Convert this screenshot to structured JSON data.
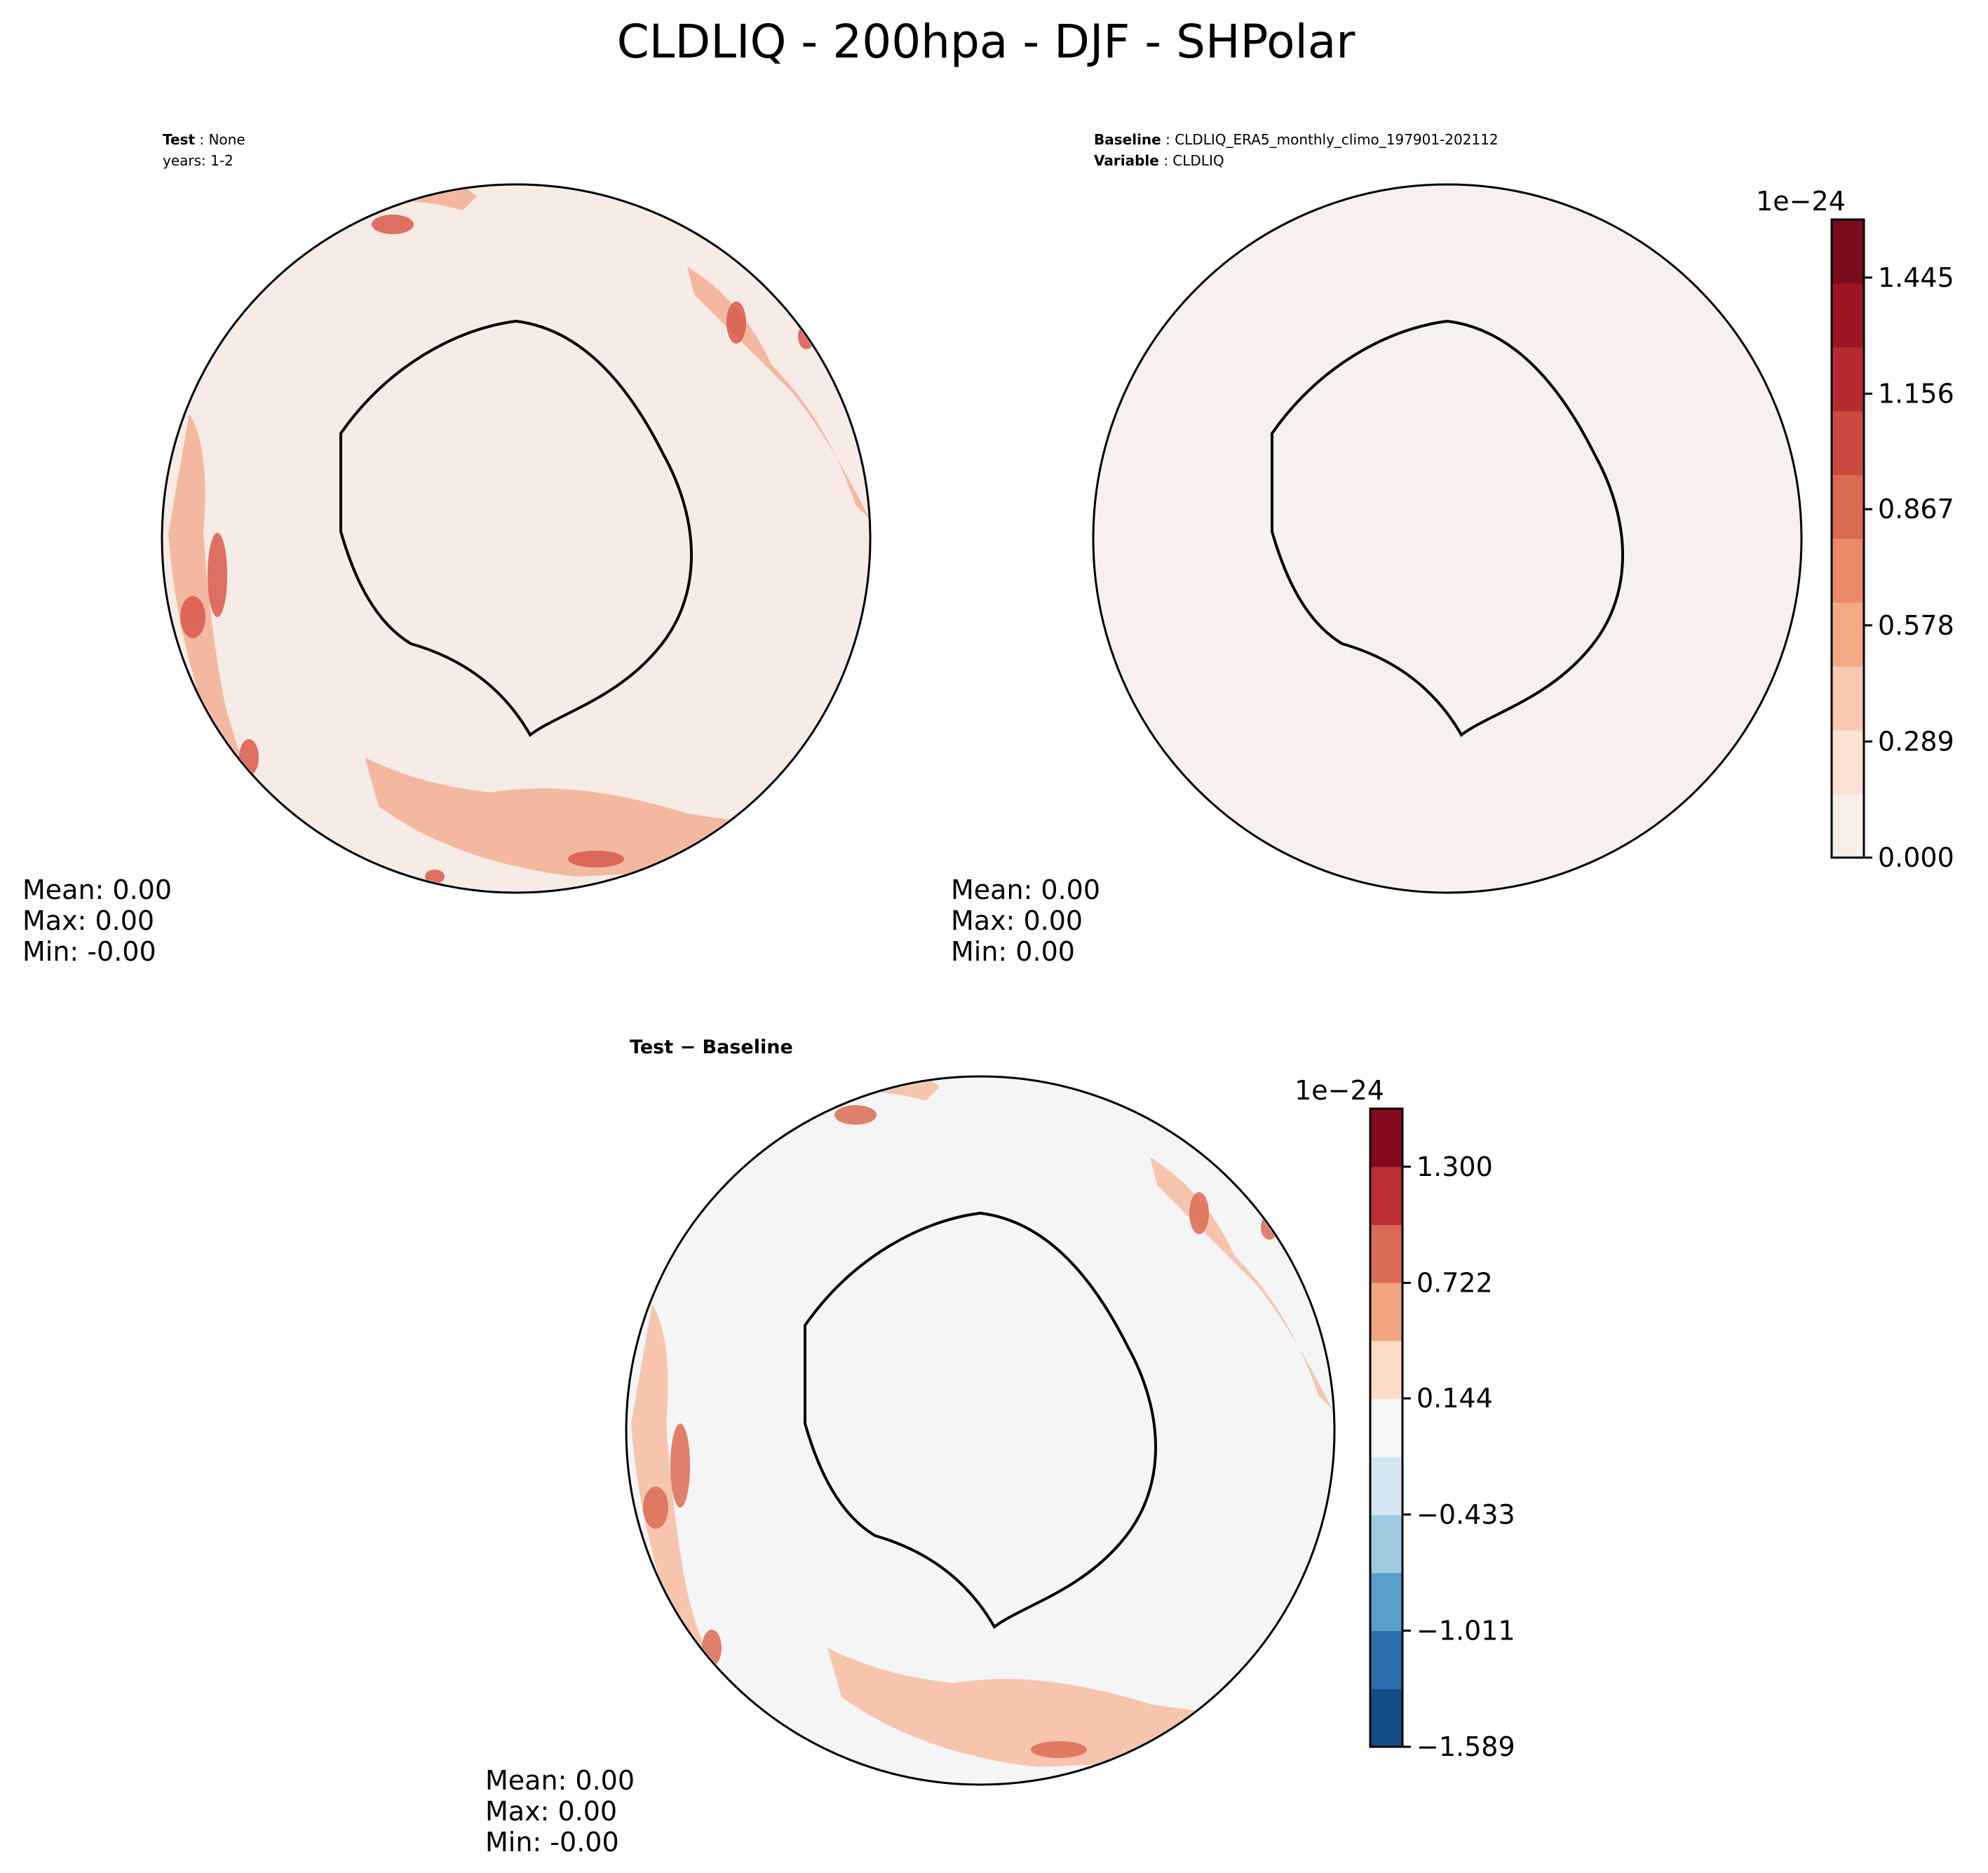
{
  "figure": {
    "title": "CLDLIQ - 200hpa - DJF - SHPolar"
  },
  "panels": {
    "test": {
      "label_key": "Test",
      "label_value": "None",
      "years_line": "years: 1-2",
      "stats": {
        "mean": "Mean:  0.00",
        "max": "Max:  0.00",
        "min": "Min: -0.00"
      },
      "fill_color": "#f7ebe5"
    },
    "baseline": {
      "baseline_key": "Baseline",
      "baseline_value": "CLDLIQ_ERA5_monthly_climo_197901-202112",
      "variable_key": "Variable",
      "variable_value": "CLDLIQ",
      "stats": {
        "mean": "Mean:  0.00",
        "max": "Max:  0.00",
        "min": "Min:  0.00"
      },
      "fill_color": "#f7f0ec"
    },
    "difference": {
      "title": "Test − Baseline",
      "stats": {
        "mean": "Mean:  0.00",
        "max": "Max:  0.00",
        "min": "Min: -0.00"
      },
      "fill_color": "#f5f5f5"
    }
  },
  "colorbars": {
    "main": {
      "exponent": "1e−24",
      "tick_labels": [
        "0.000",
        "0.289",
        "0.578",
        "0.867",
        "1.156",
        "1.445"
      ],
      "colors": [
        "#f8efeb",
        "#fbe0d3",
        "#f9c8b0",
        "#f4a985",
        "#ea8a68",
        "#dc6a52",
        "#cb4a40",
        "#b8292f",
        "#9d1525",
        "#7a0b1c"
      ]
    },
    "diff": {
      "exponent": "1e−24",
      "tick_labels": [
        "−1.589",
        "−1.011",
        "−0.433",
        "0.144",
        "0.722",
        "1.300"
      ],
      "colors": [
        "#134c86",
        "#2d6fae",
        "#579ecb",
        "#9dcae1",
        "#d4e6f1",
        "#f7f7f7",
        "#fcdcc7",
        "#f3a481",
        "#db6b56",
        "#be2e36",
        "#85091f"
      ]
    }
  }
}
